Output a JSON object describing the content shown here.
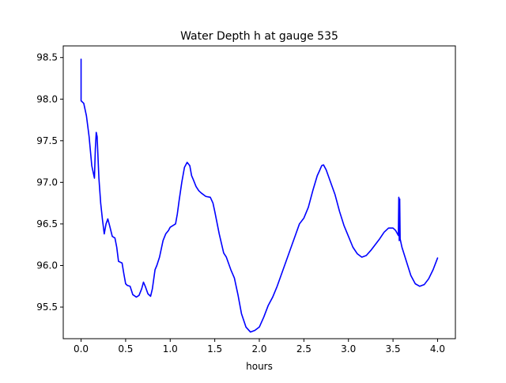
{
  "chart_data": {
    "type": "line",
    "title": "Water Depth h at gauge 535",
    "xlabel": "hours",
    "ylabel": "",
    "xlim": [
      -0.2,
      4.2
    ],
    "ylim": [
      95.12,
      98.64
    ],
    "xticks": [
      0.0,
      0.5,
      1.0,
      1.5,
      2.0,
      2.5,
      3.0,
      3.5,
      4.0
    ],
    "xtick_labels": [
      "0.0",
      "0.5",
      "1.0",
      "1.5",
      "2.0",
      "2.5",
      "3.0",
      "3.5",
      "4.0"
    ],
    "yticks": [
      95.5,
      96.0,
      96.5,
      97.0,
      97.5,
      98.0,
      98.5
    ],
    "ytick_labels": [
      "95.5",
      "96.0",
      "96.5",
      "97.0",
      "97.5",
      "98.0",
      "98.5"
    ],
    "grid": false,
    "series": [
      {
        "color": "#0000ff",
        "x": [
          0.0,
          0.0,
          0.0,
          0.03,
          0.06,
          0.09,
          0.12,
          0.15,
          0.16,
          0.17,
          0.18,
          0.2,
          0.22,
          0.24,
          0.26,
          0.28,
          0.3,
          0.32,
          0.35,
          0.38,
          0.4,
          0.42,
          0.44,
          0.46,
          0.48,
          0.5,
          0.52,
          0.55,
          0.58,
          0.62,
          0.65,
          0.68,
          0.7,
          0.72,
          0.75,
          0.78,
          0.8,
          0.83,
          0.85,
          0.88,
          0.92,
          0.95,
          0.98,
          1.0,
          1.03,
          1.06,
          1.08,
          1.1,
          1.13,
          1.16,
          1.19,
          1.22,
          1.24,
          1.26,
          1.29,
          1.32,
          1.35,
          1.4,
          1.45,
          1.48,
          1.5,
          1.55,
          1.6,
          1.63,
          1.68,
          1.72,
          1.76,
          1.8,
          1.85,
          1.9,
          1.95,
          2.0,
          2.05,
          2.1,
          2.15,
          2.2,
          2.25,
          2.3,
          2.35,
          2.4,
          2.45,
          2.5,
          2.55,
          2.6,
          2.65,
          2.68,
          2.7,
          2.72,
          2.75,
          2.8,
          2.85,
          2.9,
          2.95,
          3.0,
          3.05,
          3.1,
          3.15,
          3.2,
          3.25,
          3.3,
          3.35,
          3.4,
          3.45,
          3.5,
          3.53,
          3.56,
          3.565,
          3.57,
          3.575,
          3.58,
          3.6,
          3.65,
          3.7,
          3.75,
          3.8,
          3.85,
          3.9,
          3.95,
          4.0
        ],
        "y": [
          98.0,
          98.48,
          97.98,
          97.95,
          97.8,
          97.55,
          97.2,
          97.05,
          97.4,
          97.6,
          97.55,
          97.05,
          96.75,
          96.55,
          96.38,
          96.5,
          96.56,
          96.48,
          96.35,
          96.33,
          96.22,
          96.05,
          96.04,
          96.03,
          95.9,
          95.78,
          95.76,
          95.75,
          95.65,
          95.62,
          95.64,
          95.72,
          95.8,
          95.75,
          95.66,
          95.63,
          95.72,
          95.95,
          96.0,
          96.1,
          96.3,
          96.38,
          96.42,
          96.46,
          96.48,
          96.5,
          96.62,
          96.78,
          97.0,
          97.18,
          97.24,
          97.2,
          97.08,
          97.03,
          96.95,
          96.9,
          96.87,
          96.83,
          96.82,
          96.75,
          96.65,
          96.38,
          96.15,
          96.1,
          95.95,
          95.85,
          95.65,
          95.42,
          95.26,
          95.2,
          95.22,
          95.26,
          95.38,
          95.52,
          95.62,
          95.75,
          95.9,
          96.05,
          96.2,
          96.35,
          96.5,
          96.57,
          96.7,
          96.9,
          97.08,
          97.15,
          97.2,
          97.21,
          97.15,
          97.0,
          96.85,
          96.65,
          96.48,
          96.35,
          96.22,
          96.14,
          96.1,
          96.12,
          96.18,
          96.25,
          96.32,
          96.4,
          96.45,
          96.45,
          96.42,
          96.36,
          96.82,
          96.3,
          96.8,
          96.32,
          96.22,
          96.05,
          95.88,
          95.78,
          95.75,
          95.77,
          95.84,
          95.95,
          96.09
        ]
      }
    ]
  }
}
